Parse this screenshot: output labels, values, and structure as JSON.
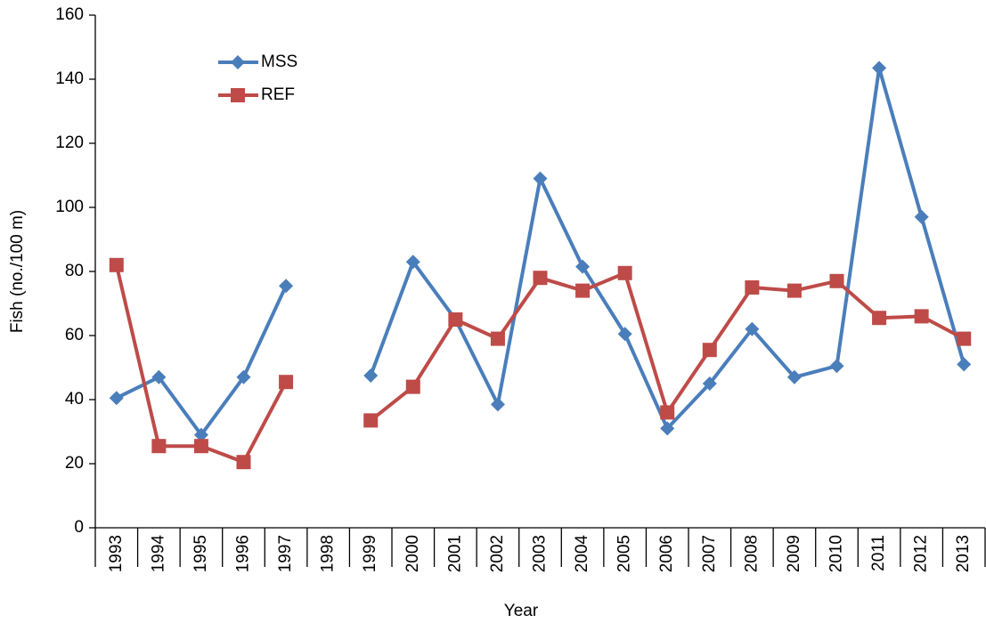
{
  "chart_data": {
    "type": "line",
    "x_label": "Year",
    "y_label": "Fish (no./100 m)",
    "categories": [
      "1993",
      "1994",
      "1995",
      "1996",
      "1997",
      "1998",
      "1999",
      "2000",
      "2001",
      "2002",
      "2003",
      "2004",
      "2005",
      "2006",
      "2007",
      "2008",
      "2009",
      "2010",
      "2011",
      "2012",
      "2013"
    ],
    "series": [
      {
        "name": "MSS",
        "color": "#4a7ebb",
        "marker": "diamond",
        "values": [
          40.5,
          47,
          29,
          47,
          75.5,
          null,
          47.5,
          83,
          65,
          38.5,
          109,
          81.5,
          60.5,
          31,
          45,
          62,
          47,
          50.5,
          143.5,
          97,
          51
        ]
      },
      {
        "name": "REF",
        "color": "#be4b48",
        "marker": "square",
        "values": [
          82,
          25.5,
          25.5,
          20.5,
          45.5,
          null,
          33.5,
          44,
          65,
          59,
          78,
          74,
          79.5,
          36,
          55.5,
          75,
          74,
          77,
          65.5,
          66,
          59
        ]
      }
    ],
    "ylim": [
      0,
      160
    ],
    "yticks": [
      0,
      20,
      40,
      60,
      80,
      100,
      120,
      140,
      160
    ],
    "grid": false,
    "legend": "upper left"
  }
}
